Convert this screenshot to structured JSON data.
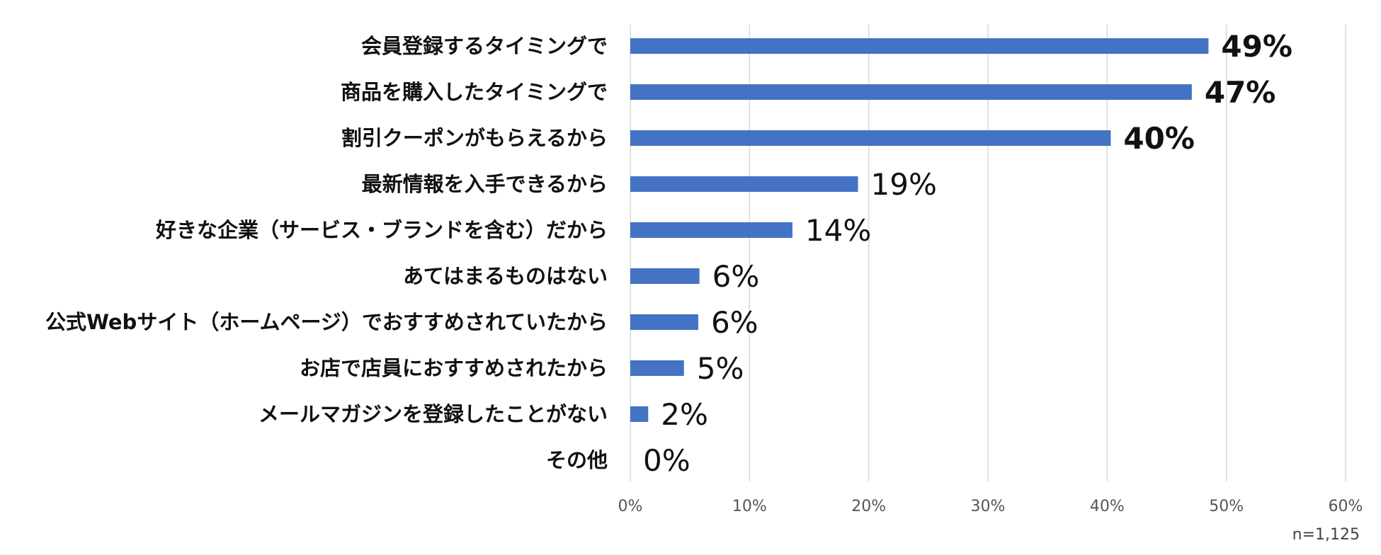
{
  "chart_data": {
    "type": "bar",
    "orientation": "horizontal",
    "categories": [
      "会員登録するタイミングで",
      "商品を購入したタイミングで",
      "割引クーポンがもらえるから",
      "最新情報を入手できるから",
      "好きな企業（サービス・ブランドを含む）だから",
      "あてはまるものはない",
      "公式Webサイト（ホームページ）でおすすめされていたから",
      "お店で店員におすすめされたから",
      "メールマガジンを登録したことがない",
      "その他"
    ],
    "values": [
      48.5,
      47.1,
      40.3,
      19.1,
      13.6,
      5.8,
      5.7,
      4.5,
      1.5,
      0
    ],
    "value_labels": [
      "49%",
      "47%",
      "40%",
      "19%",
      "14%",
      "6%",
      "6%",
      "5%",
      "2%",
      "0%"
    ],
    "highlighted_labels": [
      0,
      1,
      2
    ],
    "xlim": [
      0,
      60
    ],
    "xticks": [
      "0%",
      "10%",
      "20%",
      "30%",
      "40%",
      "50%",
      "60%"
    ],
    "grid": true,
    "bar_color": "#4472C4",
    "note": "n=1,125"
  }
}
